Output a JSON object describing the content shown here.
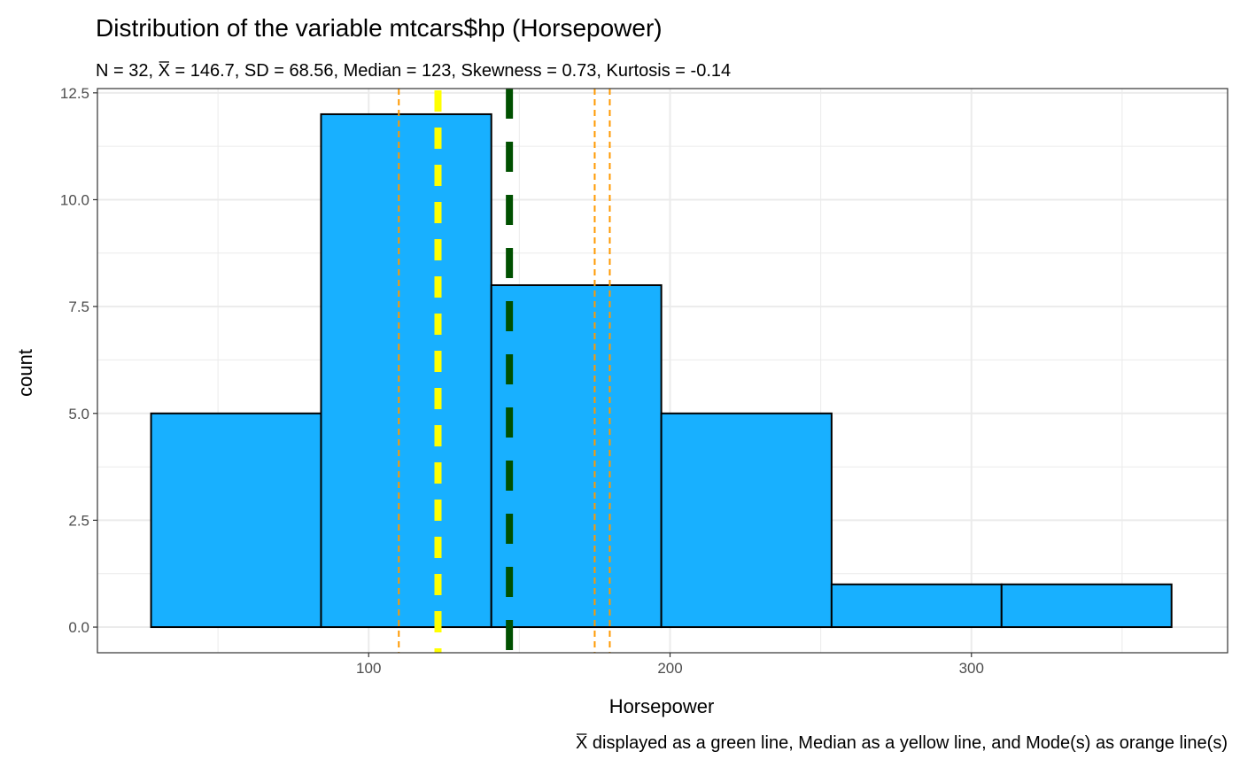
{
  "chart_data": {
    "type": "histogram",
    "title": "Distribution of the variable mtcars$hp (Horsepower)",
    "subtitle": {
      "prefix": "N = 32, ",
      "xbar_symbol": "X",
      "rest": " = 146.7, SD = 68.56, Median = 123, Skewness = 0.73, Kurtosis = -0.14"
    },
    "xlabel": "Horsepower",
    "ylabel": "count",
    "caption": {
      "xbar_symbol": "X",
      "rest": " displayed as a green line, Median as a yellow line, and Mode(s) as orange line(s)"
    },
    "xlim": [
      10,
      385
    ],
    "ylim": [
      -0.6,
      12.6
    ],
    "x_ticks": [
      100,
      200,
      300
    ],
    "x_tick_labels": [
      "100",
      "200",
      "300"
    ],
    "y_ticks": [
      0,
      2.5,
      5,
      7.5,
      10,
      12.5
    ],
    "y_tick_labels": [
      "0.0",
      "2.5",
      "5.0",
      "7.5",
      "10.0",
      "12.5"
    ],
    "bins": [
      {
        "x_start": 27.8,
        "x_end": 84.2,
        "count": 5
      },
      {
        "x_start": 84.2,
        "x_end": 140.7,
        "count": 12
      },
      {
        "x_start": 140.7,
        "x_end": 197.1,
        "count": 8
      },
      {
        "x_start": 197.1,
        "x_end": 253.6,
        "count": 5
      },
      {
        "x_start": 253.6,
        "x_end": 310.0,
        "count": 1
      },
      {
        "x_start": 310.0,
        "x_end": 366.4,
        "count": 1
      }
    ],
    "mean": 146.7,
    "median": 123,
    "modes": [
      110,
      175,
      180
    ],
    "grid": true,
    "colors": {
      "bar_fill": "#18b0ff",
      "bar_stroke": "#000000",
      "mean_line": "#005000",
      "median_line": "#ffff00",
      "mode_line": "#ff9900",
      "grid": "#ebebeb",
      "panel_border": "#333333"
    }
  }
}
